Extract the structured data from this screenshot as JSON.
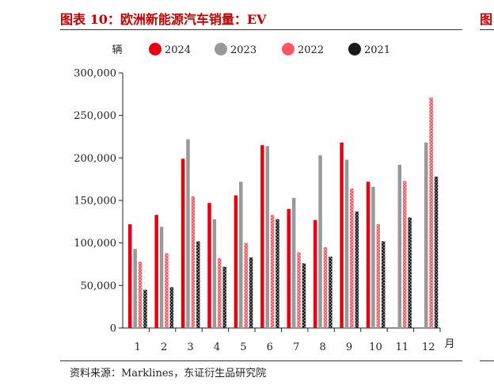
{
  "header": {
    "title": "图表 10：欧洲新能源汽车销量：EV",
    "side_title": "图"
  },
  "footer": {
    "source": "资料来源：Marklines，东证衍生品研究院"
  },
  "chart_data": {
    "type": "bar",
    "ylabel": "辆",
    "xlabel": "月",
    "categories": [
      "1",
      "2",
      "3",
      "4",
      "5",
      "6",
      "7",
      "8",
      "9",
      "10",
      "11",
      "12"
    ],
    "ylim": [
      0,
      300000
    ],
    "yticks": [
      "0",
      "50,000",
      "100,000",
      "150,000",
      "200,000",
      "250,000",
      "300,000"
    ],
    "legend_position": "top",
    "series": [
      {
        "name": "2024",
        "color": "#e60012",
        "pattern": "solid",
        "values": [
          122000,
          133000,
          199000,
          147000,
          156000,
          215000,
          140000,
          127000,
          218000,
          172000,
          null,
          null
        ]
      },
      {
        "name": "2023",
        "color": "#999999",
        "pattern": "solid",
        "values": [
          93000,
          119000,
          222000,
          128000,
          172000,
          214000,
          153000,
          203000,
          198000,
          166000,
          192000,
          218000
        ]
      },
      {
        "name": "2022",
        "color": "#ff5566",
        "pattern": "dotted",
        "values": [
          78000,
          88000,
          155000,
          82000,
          100000,
          133000,
          89000,
          95000,
          164000,
          122000,
          173000,
          271000
        ]
      },
      {
        "name": "2021",
        "color": "#1a1a1a",
        "pattern": "dotted",
        "values": [
          45000,
          48000,
          102000,
          72000,
          83000,
          128000,
          76000,
          84000,
          137000,
          102000,
          130000,
          178000
        ]
      }
    ]
  }
}
